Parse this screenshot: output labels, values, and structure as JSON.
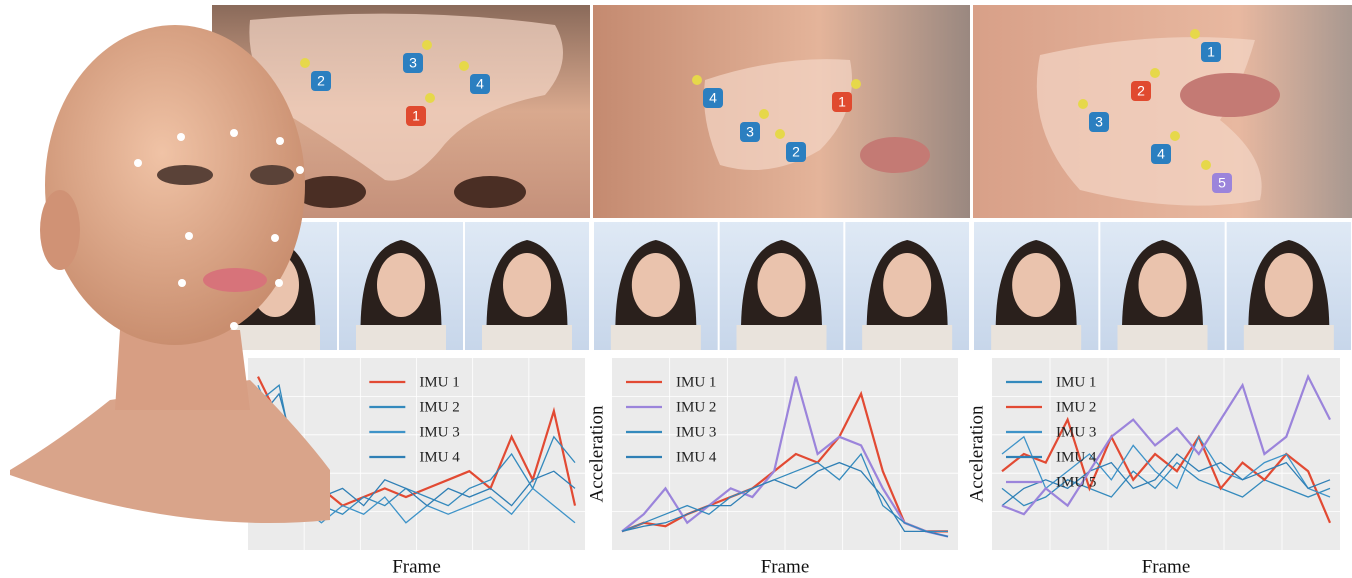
{
  "panels": [
    {
      "badges": [
        {
          "label": "2",
          "color": "#2b7fc0"
        },
        {
          "label": "3",
          "color": "#2b7fc0"
        },
        {
          "label": "4",
          "color": "#2b7fc0"
        },
        {
          "label": "1",
          "color": "#e04a2f"
        }
      ]
    },
    {
      "badges": [
        {
          "label": "4",
          "color": "#2b7fc0"
        },
        {
          "label": "3",
          "color": "#2b7fc0"
        },
        {
          "label": "2",
          "color": "#2b7fc0"
        },
        {
          "label": "1",
          "color": "#e04a2f"
        }
      ]
    },
    {
      "badges": [
        {
          "label": "1",
          "color": "#2b7fc0"
        },
        {
          "label": "2",
          "color": "#e04a2f"
        },
        {
          "label": "3",
          "color": "#2b7fc0"
        },
        {
          "label": "4",
          "color": "#2b7fc0"
        },
        {
          "label": "5",
          "color": "#9b84db"
        }
      ]
    }
  ],
  "chart_data": [
    {
      "type": "line",
      "x_label": "Frame",
      "legend": "upper center",
      "x": [
        0,
        1,
        2,
        3,
        4,
        5,
        6,
        7,
        8,
        9,
        10,
        11,
        12,
        13,
        14,
        15
      ],
      "xlim": [
        0,
        15
      ],
      "ylim": [
        0,
        1
      ],
      "series": [
        {
          "name": "IMU 1",
          "color": "#e24a33",
          "values": [
            0.95,
            0.7,
            0.5,
            0.3,
            0.2,
            0.25,
            0.3,
            0.25,
            0.3,
            0.35,
            0.4,
            0.3,
            0.6,
            0.35,
            0.75,
            0.2
          ]
        },
        {
          "name": "IMU 2",
          "color": "#348abd",
          "values": [
            0.8,
            0.9,
            0.3,
            0.2,
            0.15,
            0.25,
            0.2,
            0.3,
            0.25,
            0.2,
            0.3,
            0.35,
            0.5,
            0.3,
            0.6,
            0.45
          ]
        },
        {
          "name": "IMU 3",
          "color": "#3e93c8",
          "values": [
            0.9,
            0.6,
            0.2,
            0.1,
            0.2,
            0.15,
            0.25,
            0.1,
            0.2,
            0.15,
            0.2,
            0.25,
            0.15,
            0.3,
            0.2,
            0.1
          ]
        },
        {
          "name": "IMU 4",
          "color": "#2f7fb5",
          "values": [
            0.7,
            0.85,
            0.4,
            0.25,
            0.3,
            0.2,
            0.35,
            0.3,
            0.2,
            0.3,
            0.25,
            0.3,
            0.2,
            0.35,
            0.4,
            0.3
          ]
        }
      ]
    },
    {
      "type": "line",
      "x_label": "Frame",
      "y_label": "Acceleration",
      "legend": "upper left",
      "x": [
        0,
        1,
        2,
        3,
        4,
        5,
        6,
        7,
        8,
        9,
        10,
        11,
        12,
        13,
        14,
        15
      ],
      "xlim": [
        0,
        15
      ],
      "ylim": [
        0,
        1
      ],
      "series": [
        {
          "name": "IMU 1",
          "color": "#e24a33",
          "values": [
            0.05,
            0.1,
            0.08,
            0.15,
            0.2,
            0.25,
            0.3,
            0.4,
            0.5,
            0.45,
            0.6,
            0.85,
            0.4,
            0.1,
            0.05,
            0.05
          ]
        },
        {
          "name": "IMU 2",
          "color": "#9b84db",
          "values": [
            0.05,
            0.15,
            0.3,
            0.1,
            0.2,
            0.3,
            0.25,
            0.4,
            0.95,
            0.5,
            0.6,
            0.55,
            0.3,
            0.1,
            0.05,
            0.02
          ]
        },
        {
          "name": "IMU 3",
          "color": "#348abd",
          "values": [
            0.05,
            0.1,
            0.15,
            0.2,
            0.15,
            0.25,
            0.3,
            0.35,
            0.4,
            0.45,
            0.35,
            0.5,
            0.2,
            0.1,
            0.05,
            0.05
          ]
        },
        {
          "name": "IMU 4",
          "color": "#2f7fb5",
          "values": [
            0.05,
            0.08,
            0.1,
            0.15,
            0.2,
            0.2,
            0.3,
            0.35,
            0.3,
            0.4,
            0.45,
            0.4,
            0.25,
            0.05,
            0.05,
            0.02
          ]
        }
      ]
    },
    {
      "type": "line",
      "x_label": "Frame",
      "y_label": "Acceleration",
      "legend": "upper left",
      "x": [
        0,
        1,
        2,
        3,
        4,
        5,
        6,
        7,
        8,
        9,
        10,
        11,
        12,
        13,
        14,
        15
      ],
      "xlim": [
        0,
        15
      ],
      "ylim": [
        0,
        1
      ],
      "series": [
        {
          "name": "IMU 1",
          "color": "#348abd",
          "values": [
            0.3,
            0.2,
            0.25,
            0.35,
            0.3,
            0.25,
            0.4,
            0.3,
            0.45,
            0.35,
            0.3,
            0.25,
            0.35,
            0.3,
            0.25,
            0.3
          ]
        },
        {
          "name": "IMU 2",
          "color": "#e24a33",
          "values": [
            0.4,
            0.5,
            0.45,
            0.7,
            0.3,
            0.6,
            0.35,
            0.5,
            0.4,
            0.6,
            0.3,
            0.45,
            0.35,
            0.5,
            0.4,
            0.1
          ]
        },
        {
          "name": "IMU 3",
          "color": "#3e93c8",
          "values": [
            0.5,
            0.6,
            0.3,
            0.4,
            0.5,
            0.35,
            0.55,
            0.4,
            0.3,
            0.6,
            0.4,
            0.35,
            0.45,
            0.5,
            0.3,
            0.25
          ]
        },
        {
          "name": "IMU 4",
          "color": "#2f7fb5",
          "values": [
            0.2,
            0.3,
            0.35,
            0.3,
            0.4,
            0.45,
            0.3,
            0.35,
            0.5,
            0.4,
            0.45,
            0.35,
            0.4,
            0.45,
            0.3,
            0.35
          ]
        },
        {
          "name": "IMU 5",
          "color": "#9b84db",
          "values": [
            0.2,
            0.15,
            0.3,
            0.2,
            0.4,
            0.6,
            0.7,
            0.55,
            0.65,
            0.5,
            0.7,
            0.9,
            0.5,
            0.6,
            0.95,
            0.7
          ]
        }
      ]
    }
  ]
}
